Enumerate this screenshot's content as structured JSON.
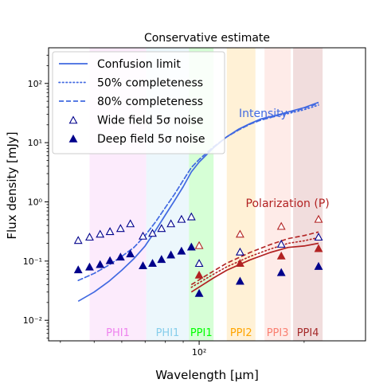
{
  "chart_data": {
    "type": "line",
    "title": "Conservative estimate",
    "xlabel": "Wavelength [μm]",
    "ylabel": "Flux density [mJy]",
    "xscale": "log",
    "yscale": "log",
    "xlim": [
      37,
      300
    ],
    "ylim": [
      0.0045,
      400
    ],
    "x_ticks": [
      {
        "value": 100,
        "label": "10²"
      }
    ],
    "y_ticks": [
      {
        "value": 0.01,
        "label": "10⁻²"
      },
      {
        "value": 0.1,
        "label": "10⁻¹"
      },
      {
        "value": 1,
        "label": "10⁰"
      },
      {
        "value": 10,
        "label": "10¹"
      },
      {
        "value": 100,
        "label": "10²"
      }
    ],
    "grid": false,
    "legend_position": "top-left",
    "legend": [
      {
        "label": "Confusion limit",
        "style": "solid"
      },
      {
        "label": "50% completeness",
        "style": "dotted"
      },
      {
        "label": "80% completeness",
        "style": "dashed"
      },
      {
        "label": "Wide field 5σ noise",
        "style": "open-triangle"
      },
      {
        "label": "Deep field 5σ noise",
        "style": "filled-triangle"
      }
    ],
    "bands": [
      {
        "name": "PHI1",
        "x_range": [
          48.5,
          70.5
        ],
        "color": "#ee82ee"
      },
      {
        "name": "PHI1",
        "x_range": [
          70.5,
          93.5
        ],
        "color": "#87ceeb"
      },
      {
        "name": "PPI1",
        "x_range": [
          93.5,
          110
        ],
        "color": "#00ff00"
      },
      {
        "name": "PPI2",
        "x_range": [
          120,
          145
        ],
        "color": "#ffa500"
      },
      {
        "name": "PPI3",
        "x_range": [
          154,
          183
        ],
        "color": "#fa8072"
      },
      {
        "name": "PPI4",
        "x_range": [
          186,
          226
        ],
        "color": "#a52a2a"
      }
    ],
    "annotations": [
      {
        "text": "Intensity",
        "x": 130,
        "y": 27,
        "color": "#4169e1"
      },
      {
        "text": "Polarization (P)",
        "x": 136,
        "y": 0.82,
        "color": "#b22222"
      }
    ],
    "series": [
      {
        "name": "Confusion limit",
        "group": "intensity",
        "color": "#4169e1",
        "style": "solid",
        "x": [
          45,
          50,
          55,
          60,
          65,
          70,
          75,
          80,
          85,
          90,
          95,
          100,
          110,
          120,
          130,
          140,
          150,
          160,
          170,
          180,
          200,
          220
        ],
        "y": [
          0.021,
          0.03,
          0.045,
          0.07,
          0.11,
          0.18,
          0.33,
          0.6,
          1.05,
          1.8,
          3.2,
          4.7,
          8.2,
          12.5,
          17,
          21,
          25,
          27.5,
          30,
          33,
          39,
          48
        ]
      },
      {
        "name": "50% completeness",
        "group": "intensity",
        "color": "#4169e1",
        "style": "dotted",
        "x": [
          45,
          50,
          55,
          60,
          65,
          70,
          75,
          80,
          85,
          90,
          95,
          100,
          110,
          120,
          130,
          140,
          150,
          160,
          170,
          180,
          200,
          220
        ],
        "y": [
          0.047,
          0.062,
          0.085,
          0.12,
          0.17,
          0.27,
          0.46,
          0.8,
          1.35,
          2.3,
          3.8,
          5.2,
          8.5,
          12.5,
          16.5,
          20.5,
          24,
          26.5,
          29,
          31,
          36,
          43
        ]
      },
      {
        "name": "80% completeness",
        "group": "intensity",
        "color": "#4169e1",
        "style": "dashed",
        "x": [
          45,
          50,
          55,
          60,
          65,
          70,
          75,
          80,
          85,
          90,
          95,
          100,
          110,
          120,
          130,
          140,
          150,
          160,
          170,
          180,
          200,
          220
        ],
        "y": [
          0.047,
          0.062,
          0.085,
          0.12,
          0.17,
          0.27,
          0.46,
          0.8,
          1.35,
          2.3,
          3.8,
          5.2,
          8.5,
          12.5,
          16.5,
          20.5,
          24,
          26.5,
          29.5,
          32,
          38,
          46
        ]
      },
      {
        "name": "Confusion limit",
        "group": "polarization",
        "color": "#b22222",
        "style": "solid",
        "x": [
          95,
          110,
          120,
          140,
          160,
          180,
          200,
          220
        ],
        "y": [
          0.03,
          0.052,
          0.07,
          0.105,
          0.14,
          0.17,
          0.18,
          0.2
        ]
      },
      {
        "name": "50% completeness",
        "group": "polarization",
        "color": "#b22222",
        "style": "dotted",
        "x": [
          95,
          110,
          120,
          140,
          160,
          180,
          200,
          220
        ],
        "y": [
          0.036,
          0.06,
          0.08,
          0.12,
          0.16,
          0.2,
          0.22,
          0.25
        ]
      },
      {
        "name": "80% completeness",
        "group": "polarization",
        "color": "#b22222",
        "style": "dashed",
        "x": [
          95,
          110,
          120,
          140,
          160,
          180,
          200,
          220
        ],
        "y": [
          0.04,
          0.068,
          0.092,
          0.14,
          0.19,
          0.24,
          0.27,
          0.31
        ]
      },
      {
        "name": "Wide field 5σ noise",
        "group": "intensity",
        "color": "#00008b",
        "marker": "open-triangle",
        "x": [
          45,
          48.5,
          52,
          55.5,
          59.5,
          63.5,
          69,
          73.5,
          78,
          83,
          89,
          95
        ],
        "y": [
          0.22,
          0.25,
          0.28,
          0.31,
          0.35,
          0.42,
          0.26,
          0.29,
          0.35,
          0.42,
          0.5,
          0.55
        ]
      },
      {
        "name": "Deep field 5σ noise",
        "group": "intensity",
        "color": "#00008b",
        "marker": "filled-triangle",
        "x": [
          45,
          48.5,
          52,
          55.5,
          59.5,
          63.5,
          69,
          73.5,
          78,
          83,
          89,
          95
        ],
        "y": [
          0.07,
          0.078,
          0.086,
          0.1,
          0.115,
          0.13,
          0.082,
          0.09,
          0.105,
          0.125,
          0.145,
          0.17
        ]
      },
      {
        "name": "Wide field 5σ noise",
        "group": "intensity",
        "color": "#00008b",
        "marker": "open-triangle",
        "x": [
          100,
          131,
          172,
          220
        ],
        "y": [
          0.09,
          0.14,
          0.19,
          0.25
        ]
      },
      {
        "name": "Deep field 5σ noise",
        "group": "intensity",
        "color": "#00008b",
        "marker": "filled-triangle",
        "x": [
          100,
          131,
          172,
          220
        ],
        "y": [
          0.028,
          0.045,
          0.063,
          0.08
        ]
      },
      {
        "name": "Wide field 5σ noise",
        "group": "polarization",
        "color": "#b22222",
        "marker": "open-triangle",
        "x": [
          100,
          131,
          172,
          220
        ],
        "y": [
          0.18,
          0.28,
          0.38,
          0.5
        ]
      },
      {
        "name": "Deep field 5σ noise",
        "group": "polarization",
        "color": "#b22222",
        "marker": "filled-triangle",
        "x": [
          100,
          131,
          172,
          220
        ],
        "y": [
          0.057,
          0.09,
          0.12,
          0.16
        ]
      }
    ]
  }
}
